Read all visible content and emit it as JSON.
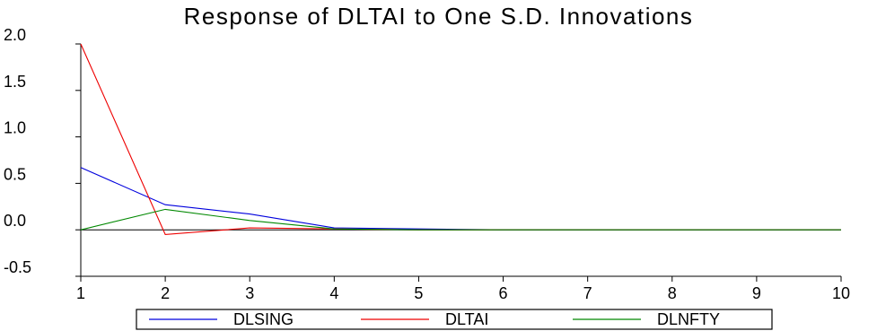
{
  "chart_data": {
    "type": "line",
    "title": "Response of DLTAI to One S.D. Innovations",
    "xlabel": "",
    "ylabel": "",
    "x": [
      1,
      2,
      3,
      4,
      5,
      6,
      7,
      8,
      9,
      10
    ],
    "xlim": [
      1,
      10
    ],
    "ylim": [
      -0.5,
      2.0
    ],
    "y_ticks": [
      -0.5,
      0.0,
      0.5,
      1.0,
      1.5,
      2.0
    ],
    "y_tick_labels": [
      "-0.5",
      "0.0",
      "0.5",
      "1.0",
      "1.5",
      "2.0"
    ],
    "x_ticks": [
      1,
      2,
      3,
      4,
      5,
      6,
      7,
      8,
      9,
      10
    ],
    "x_tick_labels": [
      "1",
      "2",
      "3",
      "4",
      "5",
      "6",
      "7",
      "8",
      "9",
      "10"
    ],
    "zero_line": true,
    "grid": false,
    "legend_position": "bottom-center",
    "series": [
      {
        "name": "DLSING",
        "color": "#0000dd",
        "values": [
          0.67,
          0.27,
          0.17,
          0.02,
          0.01,
          0.0,
          0.0,
          0.0,
          0.0,
          0.0
        ]
      },
      {
        "name": "DLTAI",
        "color": "#ee0000",
        "values": [
          2.0,
          -0.05,
          0.02,
          0.01,
          0.0,
          0.0,
          0.0,
          0.0,
          0.0,
          0.0
        ]
      },
      {
        "name": "DLNFTY",
        "color": "#008800",
        "values": [
          0.0,
          0.22,
          0.1,
          0.01,
          0.0,
          0.0,
          0.0,
          0.0,
          0.0,
          0.0
        ]
      }
    ]
  }
}
